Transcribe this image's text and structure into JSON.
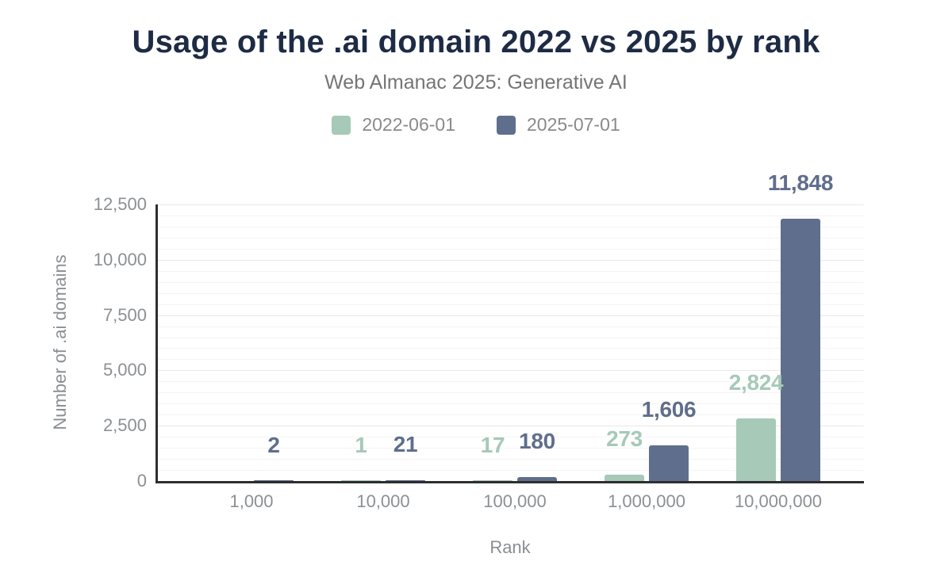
{
  "header": {
    "title": "Usage of the .ai domain 2022 vs 2025 by rank",
    "subtitle": "Web Almanac 2025: Generative AI"
  },
  "chart_data": {
    "type": "bar",
    "title": "Usage of the .ai domain 2022 vs 2025 by rank",
    "subtitle": "Web Almanac 2025: Generative AI",
    "categories": [
      "1,000",
      "10,000",
      "100,000",
      "1,000,000",
      "10,000,000"
    ],
    "series": [
      {
        "name": "2022-06-01",
        "color": "#a6c9b8",
        "values": [
          0,
          1,
          17,
          273,
          2824
        ],
        "data_labels": [
          "",
          "1",
          "17",
          "273",
          "2,824"
        ]
      },
      {
        "name": "2025-07-01",
        "color": "#5f6e8c",
        "values": [
          2,
          21,
          180,
          1606,
          11848
        ],
        "data_labels": [
          "2",
          "21",
          "180",
          "1,606",
          "11,848"
        ]
      }
    ],
    "xlabel": "Rank",
    "ylabel": "Number of .ai domains",
    "ylim": [
      0,
      12500
    ],
    "yticks": [
      0,
      2500,
      5000,
      7500,
      10000,
      12500
    ],
    "ytick_labels": [
      "0",
      "2,500",
      "5,000",
      "7,500",
      "10,000",
      "12,500"
    ],
    "grid": {
      "horizontal": true,
      "vertical": false,
      "minor_every": 500,
      "major_every": 2500
    },
    "legend_position": "top"
  },
  "colors": {
    "title": "#1e2b45",
    "subtitle": "#757575",
    "axis_text": "#8c9094",
    "axis_line": "#2e2e2e",
    "grid_major": "#e8e8e8",
    "grid_minor": "#f4f4f4",
    "background": "#ffffff"
  }
}
